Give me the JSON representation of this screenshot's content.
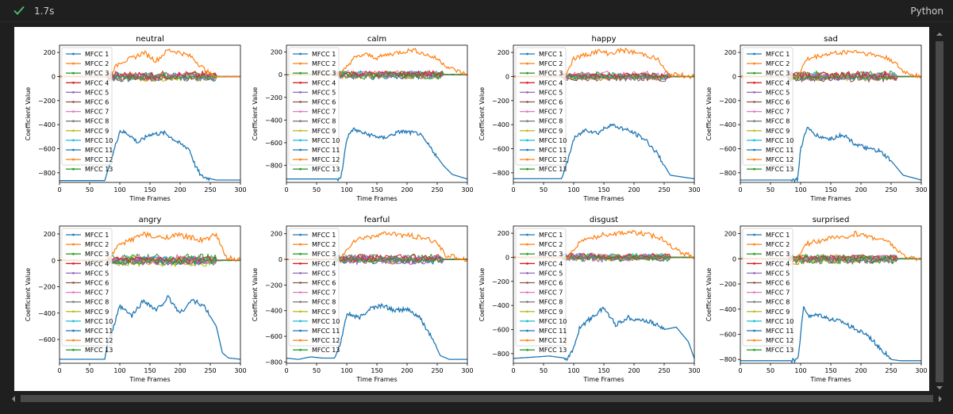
{
  "cell": {
    "status": "success",
    "exec_time": "1.7s",
    "language": "Python"
  },
  "figure": {
    "ylabel": "Coefficient Value",
    "xlabel": "Time Frames",
    "legend": [
      "MFCC 1",
      "MFCC 2",
      "MFCC 3",
      "MFCC 4",
      "MFCC 5",
      "MFCC 6",
      "MFCC 7",
      "MFCC 8",
      "MFCC 9",
      "MFCC 10",
      "MFCC 11",
      "MFCC 12",
      "MFCC 13"
    ]
  },
  "colors": {
    "series": [
      "#1f77b4",
      "#ff7f0e",
      "#2ca02c",
      "#d62728",
      "#9467bd",
      "#8c564b",
      "#e377c2",
      "#7f7f7f",
      "#bcbd22",
      "#17becf",
      "#1f77b4",
      "#ff7f0e",
      "#2ca02c"
    ],
    "check": "#4ec26d",
    "background": "#1f1f1f"
  },
  "chart_data": [
    {
      "type": "line",
      "title": "neutral",
      "xlabel": "Time Frames",
      "ylabel": "Coefficient Value",
      "xlim": [
        0,
        300
      ],
      "ylim": [
        -880,
        260
      ],
      "yticks": [
        200,
        0,
        -200,
        -400,
        -600,
        -800
      ],
      "xticks": [
        0,
        50,
        100,
        150,
        200,
        250,
        300
      ],
      "mfcc1": {
        "x": [
          0,
          75,
          82,
          90,
          100,
          115,
          130,
          150,
          175,
          200,
          215,
          225,
          235,
          250,
          260,
          300
        ],
        "y": [
          -865,
          -865,
          -750,
          -620,
          -450,
          -480,
          -550,
          -480,
          -470,
          -560,
          -600,
          -740,
          -830,
          -850,
          -860,
          -860
        ]
      },
      "mfcc2": {
        "x": [
          0,
          80,
          100,
          120,
          140,
          160,
          180,
          200,
          220,
          240,
          255,
          300
        ],
        "y": [
          0,
          0,
          120,
          150,
          200,
          130,
          220,
          200,
          160,
          60,
          0,
          0
        ]
      }
    },
    {
      "type": "line",
      "title": "calm",
      "xlabel": "Time Frames",
      "ylabel": "Coefficient Value",
      "xlim": [
        0,
        300
      ],
      "ylim": [
        -950,
        260
      ],
      "yticks": [
        200,
        0,
        -200,
        -400,
        -600,
        -800
      ],
      "xticks": [
        0,
        50,
        100,
        150,
        200,
        250,
        300
      ],
      "mfcc1": {
        "x": [
          0,
          90,
          95,
          100,
          110,
          130,
          160,
          190,
          220,
          240,
          260,
          275,
          300
        ],
        "y": [
          -920,
          -920,
          -750,
          -560,
          -480,
          -520,
          -560,
          -500,
          -520,
          -650,
          -800,
          -880,
          -920
        ]
      },
      "mfcc2": {
        "x": [
          0,
          90,
          110,
          130,
          150,
          170,
          190,
          210,
          230,
          250,
          270,
          300
        ],
        "y": [
          0,
          0,
          140,
          180,
          150,
          180,
          200,
          220,
          180,
          140,
          60,
          0
        ]
      }
    },
    {
      "type": "line",
      "title": "happy",
      "xlabel": "Time Frames",
      "ylabel": "Coefficient Value",
      "xlim": [
        0,
        300
      ],
      "ylim": [
        -880,
        260
      ],
      "yticks": [
        200,
        0,
        -200,
        -400,
        -600,
        -800
      ],
      "xticks": [
        0,
        50,
        100,
        150,
        200,
        250,
        300
      ],
      "mfcc1": {
        "x": [
          0,
          80,
          90,
          100,
          120,
          140,
          160,
          180,
          200,
          220,
          240,
          260,
          300
        ],
        "y": [
          -850,
          -850,
          -700,
          -520,
          -440,
          -470,
          -400,
          -430,
          -470,
          -530,
          -650,
          -820,
          -850
        ]
      },
      "mfcc2": {
        "x": [
          0,
          85,
          100,
          120,
          140,
          160,
          180,
          200,
          220,
          240,
          255,
          300
        ],
        "y": [
          0,
          0,
          150,
          180,
          210,
          190,
          220,
          200,
          180,
          140,
          20,
          0
        ]
      }
    },
    {
      "type": "line",
      "title": "sad",
      "xlabel": "Time Frames",
      "ylabel": "Coefficient Value",
      "xlim": [
        0,
        300
      ],
      "ylim": [
        -880,
        260
      ],
      "yticks": [
        200,
        0,
        -200,
        -400,
        -600,
        -800
      ],
      "xticks": [
        0,
        50,
        100,
        150,
        200,
        250,
        300
      ],
      "mfcc1": {
        "x": [
          0,
          95,
          100,
          110,
          130,
          150,
          170,
          190,
          210,
          230,
          250,
          270,
          300
        ],
        "y": [
          -860,
          -860,
          -600,
          -430,
          -500,
          -520,
          -480,
          -560,
          -600,
          -620,
          -700,
          -820,
          -860
        ]
      },
      "mfcc2": {
        "x": [
          0,
          95,
          110,
          130,
          150,
          170,
          190,
          210,
          230,
          250,
          270,
          300
        ],
        "y": [
          0,
          0,
          140,
          170,
          190,
          200,
          210,
          190,
          170,
          140,
          40,
          0
        ]
      }
    },
    {
      "type": "line",
      "title": "angry",
      "xlabel": "Time Frames",
      "ylabel": "Coefficient Value",
      "xlim": [
        0,
        300
      ],
      "ylim": [
        -780,
        260
      ],
      "yticks": [
        200,
        0,
        -200,
        -400,
        -600
      ],
      "xticks": [
        0,
        50,
        100,
        150,
        200,
        250,
        300
      ],
      "mfcc1": {
        "x": [
          0,
          75,
          80,
          90,
          100,
          120,
          140,
          160,
          180,
          200,
          220,
          240,
          260,
          270,
          280,
          300
        ],
        "y": [
          -750,
          -750,
          -620,
          -500,
          -350,
          -420,
          -300,
          -380,
          -280,
          -400,
          -300,
          -350,
          -500,
          -700,
          -740,
          -750
        ]
      },
      "mfcc2": {
        "x": [
          0,
          80,
          100,
          120,
          140,
          160,
          180,
          200,
          220,
          240,
          260,
          275,
          300
        ],
        "y": [
          0,
          0,
          120,
          160,
          200,
          170,
          180,
          190,
          170,
          150,
          200,
          20,
          0
        ]
      }
    },
    {
      "type": "line",
      "title": "fearful",
      "xlabel": "Time Frames",
      "ylabel": "Coefficient Value",
      "xlim": [
        0,
        300
      ],
      "ylim": [
        -810,
        260
      ],
      "yticks": [
        200,
        0,
        -200,
        -400,
        -600,
        -800
      ],
      "xticks": [
        0,
        50,
        100,
        150,
        200,
        250,
        300
      ],
      "mfcc1": {
        "x": [
          0,
          20,
          40,
          60,
          80,
          90,
          100,
          120,
          140,
          160,
          180,
          200,
          220,
          240,
          255,
          270,
          300
        ],
        "y": [
          -770,
          -780,
          -760,
          -770,
          -770,
          -650,
          -420,
          -460,
          -380,
          -360,
          -400,
          -390,
          -450,
          -600,
          -750,
          -780,
          -780
        ]
      },
      "mfcc2": {
        "x": [
          0,
          90,
          110,
          130,
          150,
          170,
          190,
          210,
          230,
          250,
          265,
          300
        ],
        "y": [
          0,
          0,
          140,
          170,
          190,
          200,
          190,
          180,
          160,
          130,
          30,
          0
        ]
      }
    },
    {
      "type": "line",
      "title": "disgust",
      "xlabel": "Time Frames",
      "ylabel": "Coefficient Value",
      "xlim": [
        0,
        300
      ],
      "ylim": [
        -880,
        260
      ],
      "yticks": [
        200,
        0,
        -200,
        -400,
        -600,
        -800
      ],
      "xticks": [
        0,
        50,
        100,
        150,
        200,
        250,
        300
      ],
      "mfcc1": {
        "x": [
          0,
          30,
          60,
          90,
          100,
          110,
          130,
          150,
          170,
          190,
          210,
          230,
          250,
          270,
          290,
          300
        ],
        "y": [
          -840,
          -830,
          -820,
          -840,
          -760,
          -580,
          -500,
          -420,
          -560,
          -500,
          -520,
          -540,
          -600,
          -580,
          -700,
          -840
        ]
      },
      "mfcc2": {
        "x": [
          0,
          90,
          110,
          130,
          150,
          170,
          190,
          210,
          230,
          250,
          270,
          300
        ],
        "y": [
          0,
          0,
          130,
          160,
          190,
          200,
          210,
          200,
          180,
          150,
          60,
          0
        ]
      }
    },
    {
      "type": "line",
      "title": "surprised",
      "xlabel": "Time Frames",
      "ylabel": "Coefficient Value",
      "xlim": [
        0,
        300
      ],
      "ylim": [
        -830,
        260
      ],
      "yticks": [
        200,
        0,
        -200,
        -400,
        -600,
        -800
      ],
      "xticks": [
        0,
        50,
        100,
        150,
        200,
        250,
        300
      ],
      "mfcc1": {
        "x": [
          0,
          95,
          100,
          105,
          115,
          130,
          150,
          170,
          190,
          210,
          230,
          250,
          265,
          280,
          300
        ],
        "y": [
          -810,
          -810,
          -600,
          -380,
          -460,
          -440,
          -480,
          -500,
          -560,
          -600,
          -700,
          -800,
          -810,
          -810,
          -810
        ]
      },
      "mfcc2": {
        "x": [
          0,
          95,
          110,
          130,
          150,
          170,
          190,
          210,
          230,
          250,
          270,
          300
        ],
        "y": [
          0,
          0,
          120,
          140,
          170,
          160,
          200,
          180,
          160,
          120,
          20,
          0
        ]
      }
    }
  ]
}
